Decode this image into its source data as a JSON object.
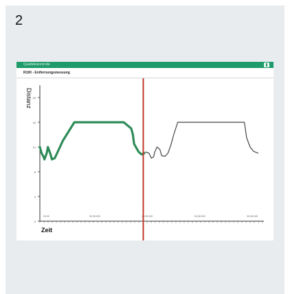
{
  "step": {
    "number": "2"
  },
  "app": {
    "title": "Qualitätskontrolle",
    "chart_title": "R100 - Entfernungsmessung"
  },
  "icons": {
    "export": "export-icon"
  },
  "colors": {
    "titlebar": "#1f9a6a",
    "measured_line": "#2e8b57",
    "reference_line": "#444444",
    "marker": "#c0392b"
  },
  "chart_data": {
    "type": "line",
    "xlabel": "Zeit",
    "ylabel": "Distanz",
    "y_ticks": [
      "0",
      "4",
      "8",
      "12",
      "16",
      "20"
    ],
    "x_ticks": [
      "00:00",
      "00:05:000",
      "00:05:000",
      "00:06:000",
      "00:06:000"
    ],
    "ylim": [
      0,
      22
    ],
    "series": [
      {
        "style": "measured",
        "x": [
          0,
          1.5,
          3,
          4,
          6,
          7,
          9,
          10.5,
          13,
          15,
          20,
          30,
          38,
          45,
          52,
          60,
          68,
          73,
          79.5,
          81,
          82,
          86,
          88.5,
          91
        ],
        "y": [
          12,
          11,
          10.5,
          10,
          11,
          12,
          11,
          10,
          10.2,
          11,
          13,
          16,
          16,
          16,
          16,
          16,
          16,
          16,
          15,
          14,
          12.5,
          11.2,
          10.8,
          11
        ]
      },
      {
        "style": "reference",
        "x": [
          92,
          95,
          97,
          99,
          100,
          102,
          104.5,
          106,
          109,
          111.5,
          114,
          116.5,
          120,
          125,
          130,
          140,
          150,
          160,
          170,
          178,
          180,
          183,
          186,
          190
        ],
        "y": [
          11.2,
          11,
          10.2,
          10.4,
          11.2,
          12,
          11.6,
          10.6,
          10.5,
          11,
          12.3,
          14,
          16,
          16,
          16,
          16,
          16,
          16,
          16,
          16,
          13.5,
          12,
          11.3,
          11
        ]
      }
    ],
    "xlim": [
      0,
      195
    ],
    "marker_x": 90
  }
}
